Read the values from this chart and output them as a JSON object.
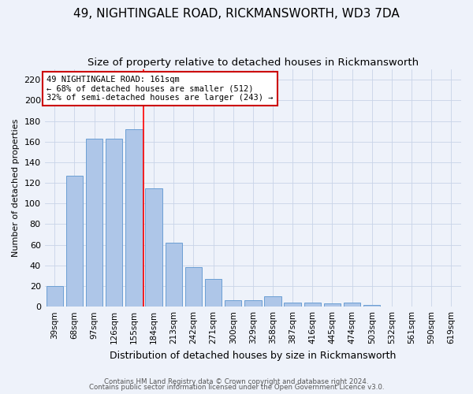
{
  "title": "49, NIGHTINGALE ROAD, RICKMANSWORTH, WD3 7DA",
  "subtitle": "Size of property relative to detached houses in Rickmansworth",
  "xlabel": "Distribution of detached houses by size in Rickmansworth",
  "ylabel": "Number of detached properties",
  "categories": [
    "39sqm",
    "68sqm",
    "97sqm",
    "126sqm",
    "155sqm",
    "184sqm",
    "213sqm",
    "242sqm",
    "271sqm",
    "300sqm",
    "329sqm",
    "358sqm",
    "387sqm",
    "416sqm",
    "445sqm",
    "474sqm",
    "503sqm",
    "532sqm",
    "561sqm",
    "590sqm",
    "619sqm"
  ],
  "bar_heights": [
    20,
    127,
    163,
    163,
    172,
    115,
    62,
    38,
    27,
    6,
    6,
    10,
    4,
    4,
    3,
    4,
    2,
    0,
    0,
    0,
    0
  ],
  "bar_color": "#aec6e8",
  "bar_edgecolor": "#6b9fd4",
  "annotation_line1": "49 NIGHTINGALE ROAD: 161sqm",
  "annotation_line2": "← 68% of detached houses are smaller (512)",
  "annotation_line3": "32% of semi-detached houses are larger (243) →",
  "annotation_box_edgecolor": "#cc0000",
  "ylim": [
    0,
    230
  ],
  "yticks": [
    0,
    20,
    40,
    60,
    80,
    100,
    120,
    140,
    160,
    180,
    200,
    220
  ],
  "footer1": "Contains HM Land Registry data © Crown copyright and database right 2024.",
  "footer2": "Contains public sector information licensed under the Open Government Licence v3.0.",
  "bg_color": "#eef2fa",
  "title_fontsize": 11,
  "subtitle_fontsize": 9.5
}
